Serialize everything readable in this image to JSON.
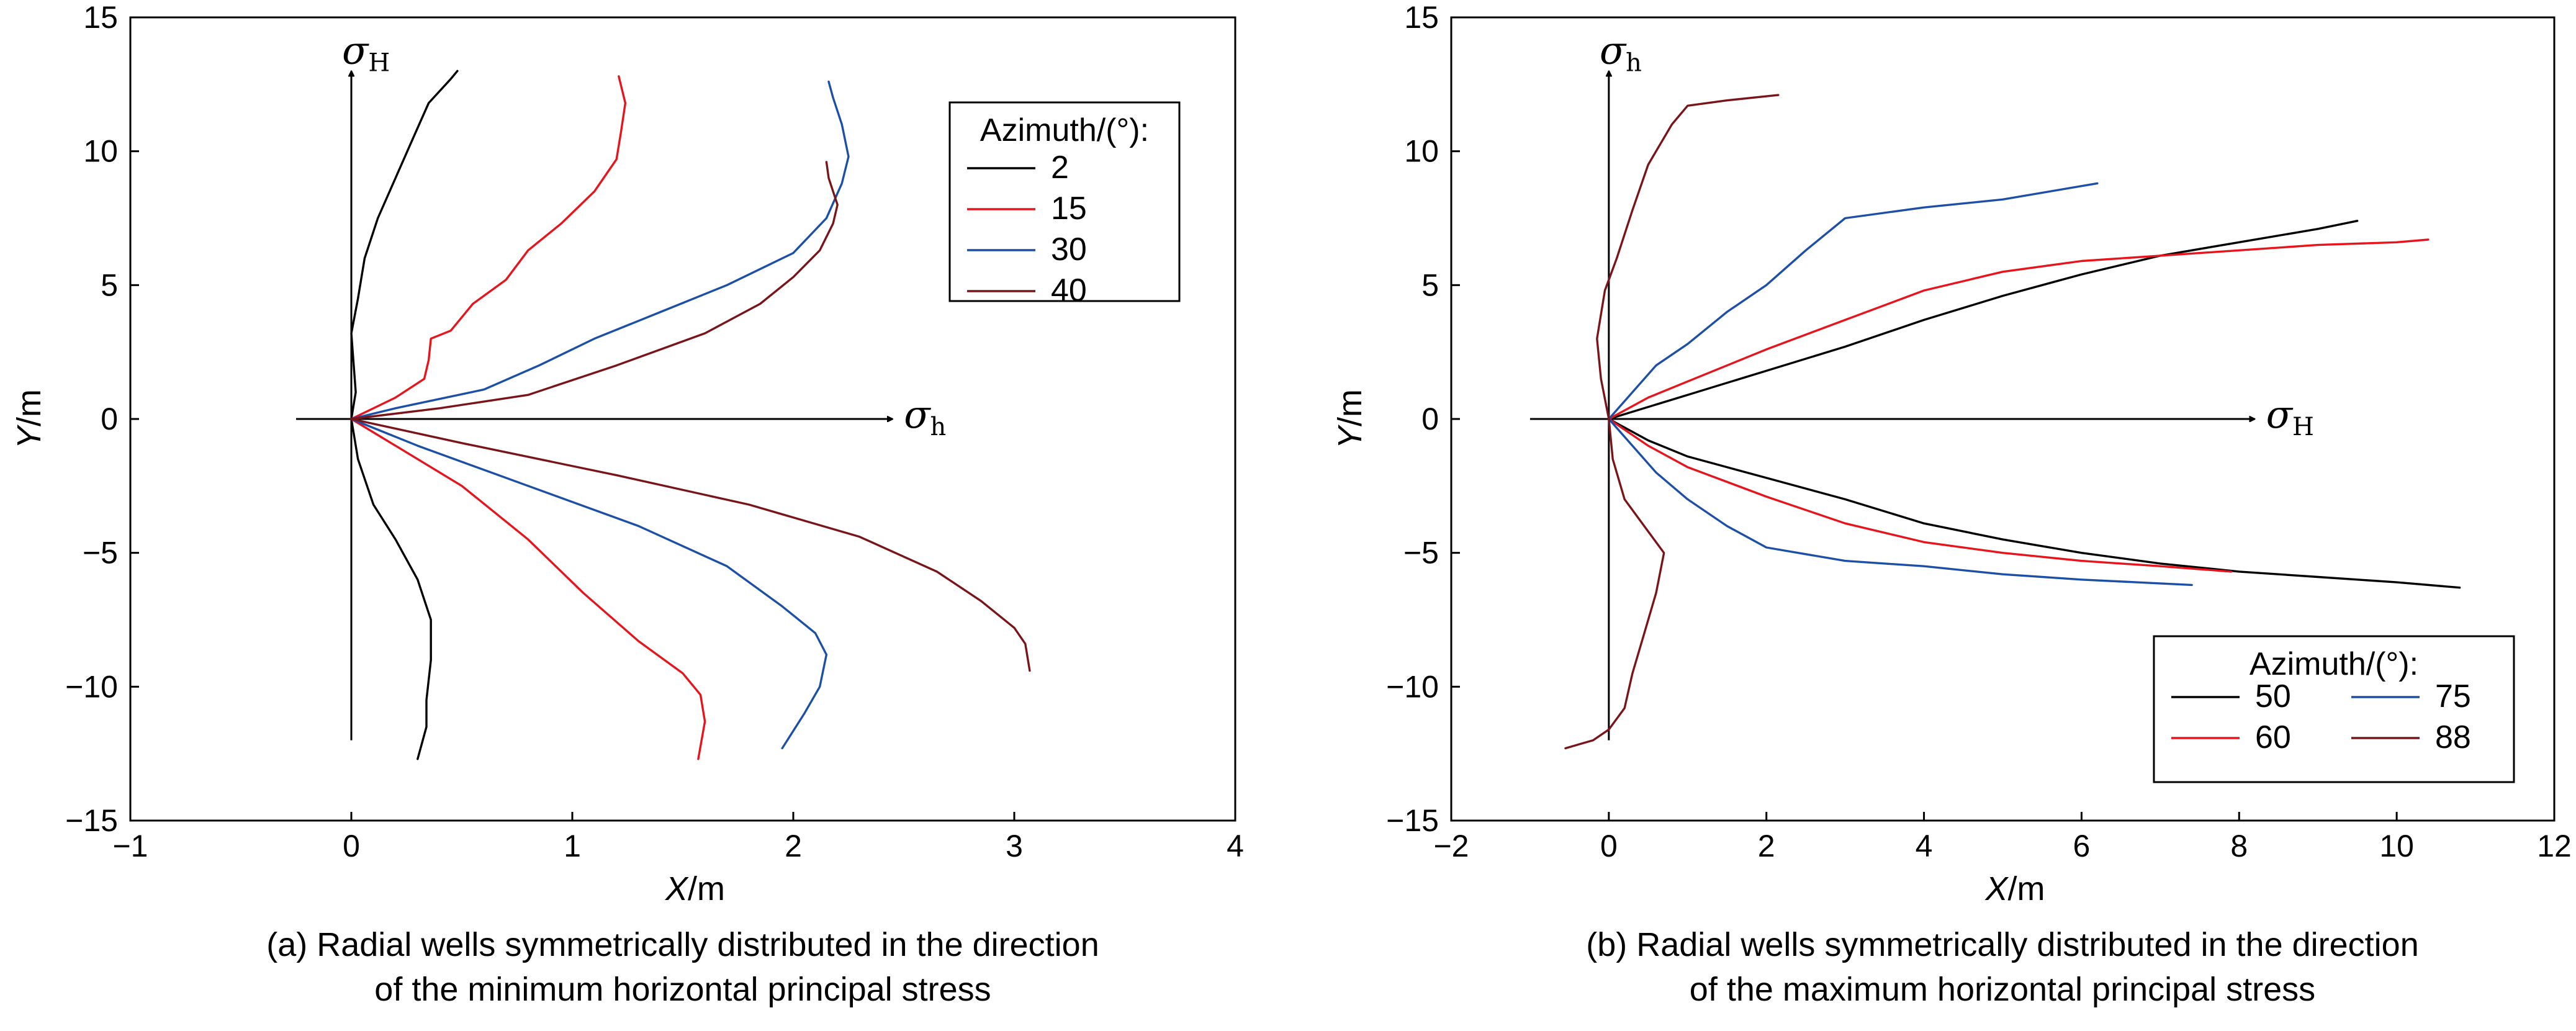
{
  "chart_data": [
    {
      "type": "line",
      "xlabel": "X/m",
      "ylabel": "Y/m",
      "xlim": [
        -1,
        4
      ],
      "ylim": [
        -15,
        15
      ],
      "xticks": [
        "-1",
        "0",
        "1",
        "2",
        "3",
        "4"
      ],
      "yticks": [
        "15",
        "10",
        "5",
        "0",
        "-5",
        "-10",
        "-15"
      ],
      "caption_line1": "(a) Radial wells symmetrically distributed in the direction",
      "caption_line2": "of the minimum horizontal principal stress",
      "stress_axis_vertical": {
        "symbol": "σ",
        "sub": "H"
      },
      "stress_axis_horizontal": {
        "symbol": "σ",
        "sub": "h"
      },
      "legend_title": "Azimuth/(°):",
      "legend_position": "top-right",
      "series": [
        {
          "name": "2",
          "color": "#000000",
          "upper": [
            [
              0,
              0
            ],
            [
              0.02,
              1.0
            ],
            [
              0.0,
              3.2
            ],
            [
              0.03,
              4.5
            ],
            [
              0.06,
              6.0
            ],
            [
              0.12,
              7.5
            ],
            [
              0.2,
              9.0
            ],
            [
              0.28,
              10.5
            ],
            [
              0.35,
              11.8
            ],
            [
              0.45,
              12.7
            ],
            [
              0.48,
              13.0
            ]
          ],
          "lower": [
            [
              0,
              0
            ],
            [
              0.03,
              -1.5
            ],
            [
              0.1,
              -3.2
            ],
            [
              0.2,
              -4.5
            ],
            [
              0.3,
              -6.0
            ],
            [
              0.36,
              -7.5
            ],
            [
              0.36,
              -9.0
            ],
            [
              0.34,
              -10.5
            ],
            [
              0.34,
              -11.5
            ],
            [
              0.3,
              -12.7
            ]
          ]
        },
        {
          "name": "15",
          "color": "#e8141c",
          "upper": [
            [
              0,
              0
            ],
            [
              0.2,
              0.8
            ],
            [
              0.33,
              1.5
            ],
            [
              0.35,
              2.2
            ],
            [
              0.36,
              3.0
            ],
            [
              0.45,
              3.3
            ],
            [
              0.55,
              4.3
            ],
            [
              0.7,
              5.2
            ],
            [
              0.8,
              6.3
            ],
            [
              0.95,
              7.3
            ],
            [
              1.1,
              8.5
            ],
            [
              1.2,
              9.7
            ],
            [
              1.22,
              10.7
            ],
            [
              1.24,
              11.8
            ],
            [
              1.21,
              12.8
            ]
          ],
          "lower": [
            [
              0,
              0
            ],
            [
              0.2,
              -1.0
            ],
            [
              0.5,
              -2.5
            ],
            [
              0.8,
              -4.5
            ],
            [
              1.05,
              -6.5
            ],
            [
              1.3,
              -8.3
            ],
            [
              1.5,
              -9.5
            ],
            [
              1.58,
              -10.3
            ],
            [
              1.6,
              -11.3
            ],
            [
              1.57,
              -12.7
            ]
          ]
        },
        {
          "name": "30",
          "color": "#1c4fa8",
          "upper": [
            [
              0,
              0
            ],
            [
              0.2,
              0.4
            ],
            [
              0.6,
              1.1
            ],
            [
              0.85,
              2.0
            ],
            [
              1.1,
              3.0
            ],
            [
              1.4,
              4.0
            ],
            [
              1.7,
              5.0
            ],
            [
              2.0,
              6.2
            ],
            [
              2.15,
              7.5
            ],
            [
              2.22,
              8.8
            ],
            [
              2.25,
              9.8
            ],
            [
              2.22,
              11.0
            ],
            [
              2.18,
              12.0
            ],
            [
              2.16,
              12.6
            ]
          ],
          "lower": [
            [
              0,
              0
            ],
            [
              0.3,
              -1.0
            ],
            [
              0.8,
              -2.5
            ],
            [
              1.3,
              -4.0
            ],
            [
              1.7,
              -5.5
            ],
            [
              1.95,
              -7.0
            ],
            [
              2.1,
              -8.0
            ],
            [
              2.15,
              -8.8
            ],
            [
              2.12,
              -10.0
            ],
            [
              2.05,
              -11.0
            ],
            [
              1.95,
              -12.3
            ]
          ]
        },
        {
          "name": "40",
          "color": "#7a1419",
          "upper": [
            [
              0,
              0
            ],
            [
              0.4,
              0.4
            ],
            [
              0.8,
              0.9
            ],
            [
              1.2,
              2.0
            ],
            [
              1.6,
              3.2
            ],
            [
              1.85,
              4.3
            ],
            [
              2.0,
              5.3
            ],
            [
              2.12,
              6.3
            ],
            [
              2.18,
              7.3
            ],
            [
              2.2,
              8.0
            ],
            [
              2.16,
              9.0
            ],
            [
              2.15,
              9.6
            ]
          ],
          "lower": [
            [
              0,
              0
            ],
            [
              0.5,
              -0.9
            ],
            [
              1.2,
              -2.1
            ],
            [
              1.8,
              -3.2
            ],
            [
              2.3,
              -4.4
            ],
            [
              2.65,
              -5.7
            ],
            [
              2.85,
              -6.8
            ],
            [
              3.0,
              -7.8
            ],
            [
              3.05,
              -8.4
            ],
            [
              3.07,
              -9.4
            ]
          ]
        }
      ]
    },
    {
      "type": "line",
      "xlabel": "X/m",
      "ylabel": "Y/m",
      "xlim": [
        -2,
        12
      ],
      "ylim": [
        -15,
        15
      ],
      "xticks": [
        "-2",
        "0",
        "2",
        "4",
        "6",
        "8",
        "10",
        "12"
      ],
      "yticks": [
        "15",
        "10",
        "5",
        "0",
        "-5",
        "-10",
        "-15"
      ],
      "caption_line1": "(b) Radial wells symmetrically distributed in the direction",
      "caption_line2": "of the maximum horizontal principal stress",
      "stress_axis_vertical": {
        "symbol": "σ",
        "sub": "h"
      },
      "stress_axis_horizontal": {
        "symbol": "σ",
        "sub": "H"
      },
      "legend_title": "Azimuth/(°):",
      "legend_position": "bottom-right",
      "series": [
        {
          "name": "50",
          "color": "#000000",
          "upper": [
            [
              0,
              0
            ],
            [
              1,
              0.9
            ],
            [
              2,
              1.8
            ],
            [
              3,
              2.7
            ],
            [
              4,
              3.7
            ],
            [
              5,
              4.6
            ],
            [
              6,
              5.4
            ],
            [
              7,
              6.1
            ],
            [
              8,
              6.6
            ],
            [
              9,
              7.1
            ],
            [
              9.5,
              7.4
            ]
          ],
          "lower": [
            [
              0,
              0
            ],
            [
              0.5,
              -0.8
            ],
            [
              1,
              -1.4
            ],
            [
              2,
              -2.2
            ],
            [
              3,
              -3.0
            ],
            [
              4,
              -3.9
            ],
            [
              5,
              -4.5
            ],
            [
              6,
              -5.0
            ],
            [
              7,
              -5.4
            ],
            [
              8,
              -5.7
            ],
            [
              9,
              -5.9
            ],
            [
              10,
              -6.1
            ],
            [
              10.8,
              -6.3
            ]
          ]
        },
        {
          "name": "60",
          "color": "#e8141c",
          "upper": [
            [
              0,
              0
            ],
            [
              0.5,
              0.8
            ],
            [
              1,
              1.4
            ],
            [
              2,
              2.6
            ],
            [
              3,
              3.7
            ],
            [
              4,
              4.8
            ],
            [
              5,
              5.5
            ],
            [
              6,
              5.9
            ],
            [
              7,
              6.1
            ],
            [
              8,
              6.3
            ],
            [
              9,
              6.5
            ],
            [
              10,
              6.6
            ],
            [
              10.4,
              6.7
            ]
          ],
          "lower": [
            [
              0,
              0
            ],
            [
              0.5,
              -1.0
            ],
            [
              1,
              -1.8
            ],
            [
              2,
              -2.9
            ],
            [
              3,
              -3.9
            ],
            [
              4,
              -4.6
            ],
            [
              5,
              -5.0
            ],
            [
              6,
              -5.3
            ],
            [
              7,
              -5.5
            ],
            [
              7.9,
              -5.7
            ]
          ]
        },
        {
          "name": "75",
          "color": "#1c4fa8",
          "upper": [
            [
              0,
              0
            ],
            [
              0.3,
              1.0
            ],
            [
              0.6,
              2.0
            ],
            [
              1,
              2.8
            ],
            [
              1.5,
              4.0
            ],
            [
              2,
              5.0
            ],
            [
              2.5,
              6.3
            ],
            [
              3,
              7.5
            ],
            [
              4,
              7.9
            ],
            [
              5,
              8.2
            ],
            [
              6.2,
              8.8
            ]
          ],
          "lower": [
            [
              0,
              0
            ],
            [
              0.3,
              -1.0
            ],
            [
              0.6,
              -2.0
            ],
            [
              1,
              -3.0
            ],
            [
              1.5,
              -4.0
            ],
            [
              2,
              -4.8
            ],
            [
              3,
              -5.3
            ],
            [
              4,
              -5.5
            ],
            [
              5,
              -5.8
            ],
            [
              6,
              -6.0
            ],
            [
              7.4,
              -6.2
            ]
          ]
        },
        {
          "name": "88",
          "color": "#7a1419",
          "upper": [
            [
              0,
              0
            ],
            [
              -0.1,
              1.5
            ],
            [
              -0.15,
              3.0
            ],
            [
              -0.05,
              4.8
            ],
            [
              0.1,
              6.0
            ],
            [
              0.3,
              7.8
            ],
            [
              0.5,
              9.5
            ],
            [
              0.8,
              11.0
            ],
            [
              1.0,
              11.7
            ],
            [
              1.5,
              11.9
            ],
            [
              2.15,
              12.1
            ]
          ],
          "lower": [
            [
              0,
              0
            ],
            [
              0.05,
              -1.5
            ],
            [
              0.2,
              -3.0
            ],
            [
              0.5,
              -4.2
            ],
            [
              0.7,
              -5.0
            ],
            [
              0.6,
              -6.5
            ],
            [
              0.45,
              -8.0
            ],
            [
              0.3,
              -9.5
            ],
            [
              0.2,
              -10.8
            ],
            [
              0.0,
              -11.6
            ],
            [
              -0.2,
              -12.0
            ],
            [
              -0.55,
              -12.3
            ]
          ]
        }
      ]
    }
  ]
}
